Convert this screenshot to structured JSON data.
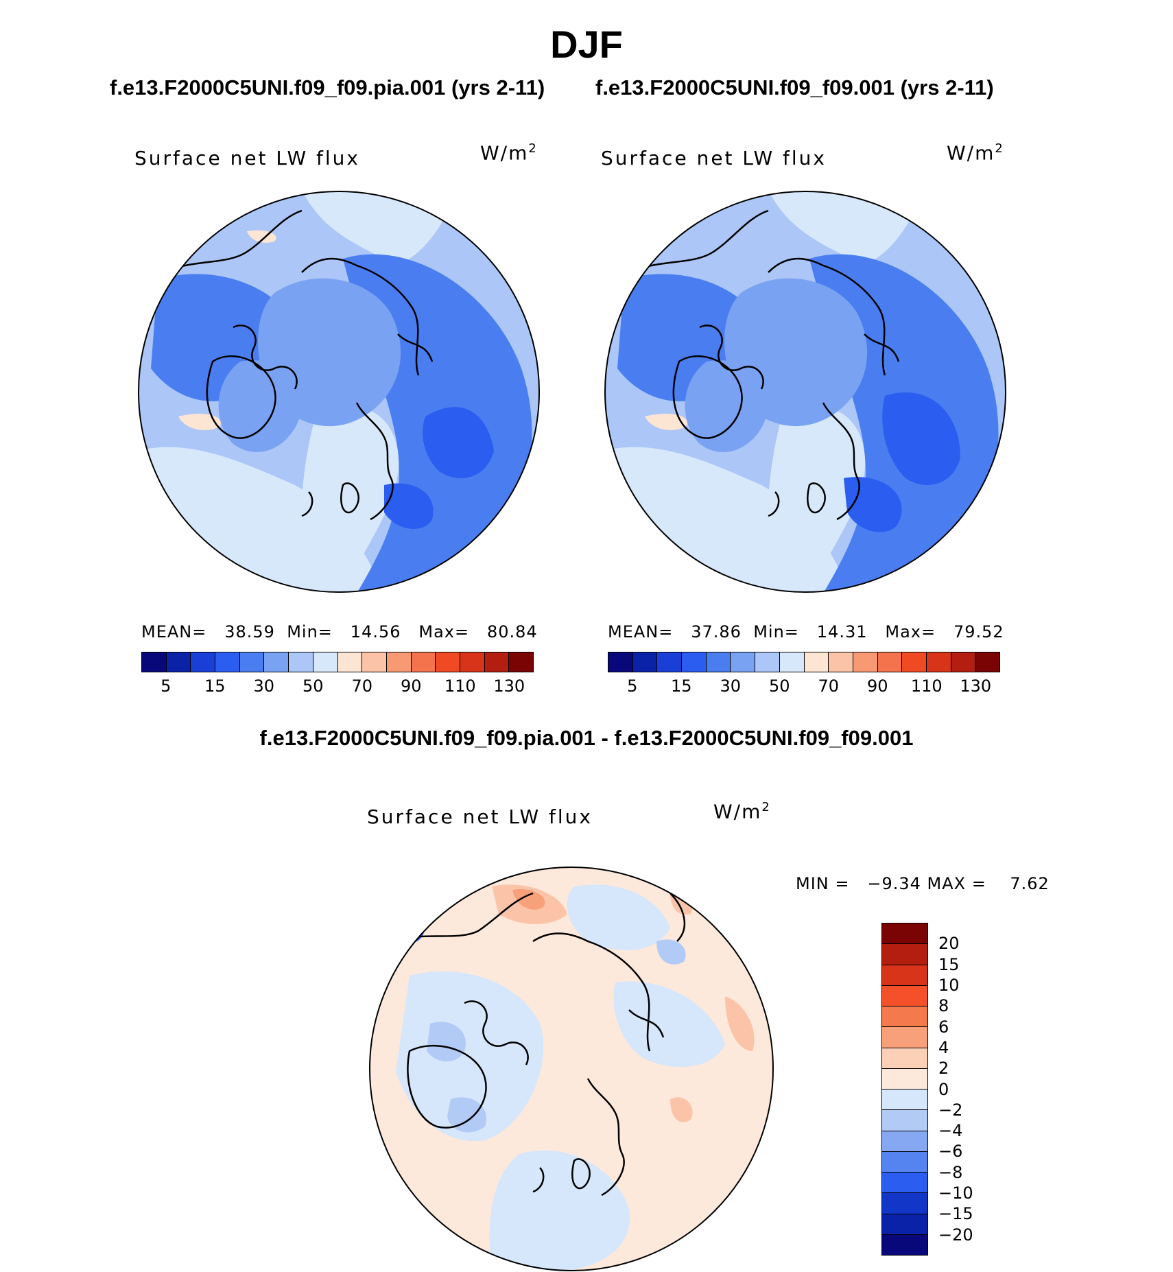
{
  "season": "DJF",
  "panels": [
    {
      "case_title": "f.e13.F2000C5UNI.f09_f09.pia.001 (yrs 2-11)",
      "variable": "Surface net LW flux",
      "units_base": "W/m",
      "units_exp": "2",
      "stats": "MEAN=   38.59  Min=   14.56   Max=   80.84",
      "mean": 38.59,
      "min": 14.56,
      "max": 80.84
    },
    {
      "case_title": "f.e13.F2000C5UNI.f09_f09.001 (yrs 2-11)",
      "variable": "Surface net LW flux",
      "units_base": "W/m",
      "units_exp": "2",
      "stats": "MEAN=   37.86  Min=   14.31   Max=   79.52",
      "mean": 37.86,
      "min": 14.31,
      "max": 79.52
    }
  ],
  "difference": {
    "title": "f.e13.F2000C5UNI.f09_f09.pia.001 - f.e13.F2000C5UNI.f09_f09.001",
    "variable": "Surface net LW flux",
    "units_base": "W/m",
    "units_exp": "2",
    "stats": "MIN =   −9.34 MAX =    7.62",
    "min": -9.34,
    "max": 7.62
  },
  "colorbar_main": {
    "tick_labels": [
      "5",
      "15",
      "30",
      "50",
      "70",
      "90",
      "110",
      "130"
    ],
    "colors": [
      "#08087a",
      "#0a22a8",
      "#1a3fd6",
      "#2b5ef0",
      "#4a7ef0",
      "#7aa2f2",
      "#abc6f7",
      "#d8e8fb",
      "#fde5d4",
      "#fbc4a8",
      "#f79a74",
      "#f4734d",
      "#ef4a24",
      "#d8341a",
      "#b31e10",
      "#7a0404"
    ]
  },
  "colorbar_diff": {
    "tick_labels": [
      "20",
      "15",
      "10",
      "8",
      "6",
      "4",
      "2",
      "0",
      "−2",
      "−4",
      "−6",
      "−8",
      "−10",
      "−15",
      "−20"
    ],
    "colors": [
      "#7a0404",
      "#b31e10",
      "#d8341a",
      "#f4502a",
      "#f47a4e",
      "#f7a07a",
      "#fbd0b6",
      "#fde9dc",
      "#d6e6fb",
      "#b2cbf6",
      "#86a8f2",
      "#5583ef",
      "#2b5ef0",
      "#1236c8",
      "#0a22a8",
      "#08087a"
    ]
  },
  "map_colors": {
    "pole_fill": "#7aa2f2",
    "eurasia_fill": "#4a7ef0",
    "atlantic_fill": "#d8e8fb",
    "pacific_fill": "#abc6f7",
    "siberia_deep": "#2b5ef0",
    "warm_patch": "#fde5d4",
    "diff_base": "#fde9dc",
    "diff_cool": "#d6e6fb",
    "diff_cool2": "#b2cbf6",
    "diff_warm": "#fbc4a8",
    "diff_warm2": "#f7a07a",
    "diff_deepblue": "#2b5ef0"
  }
}
